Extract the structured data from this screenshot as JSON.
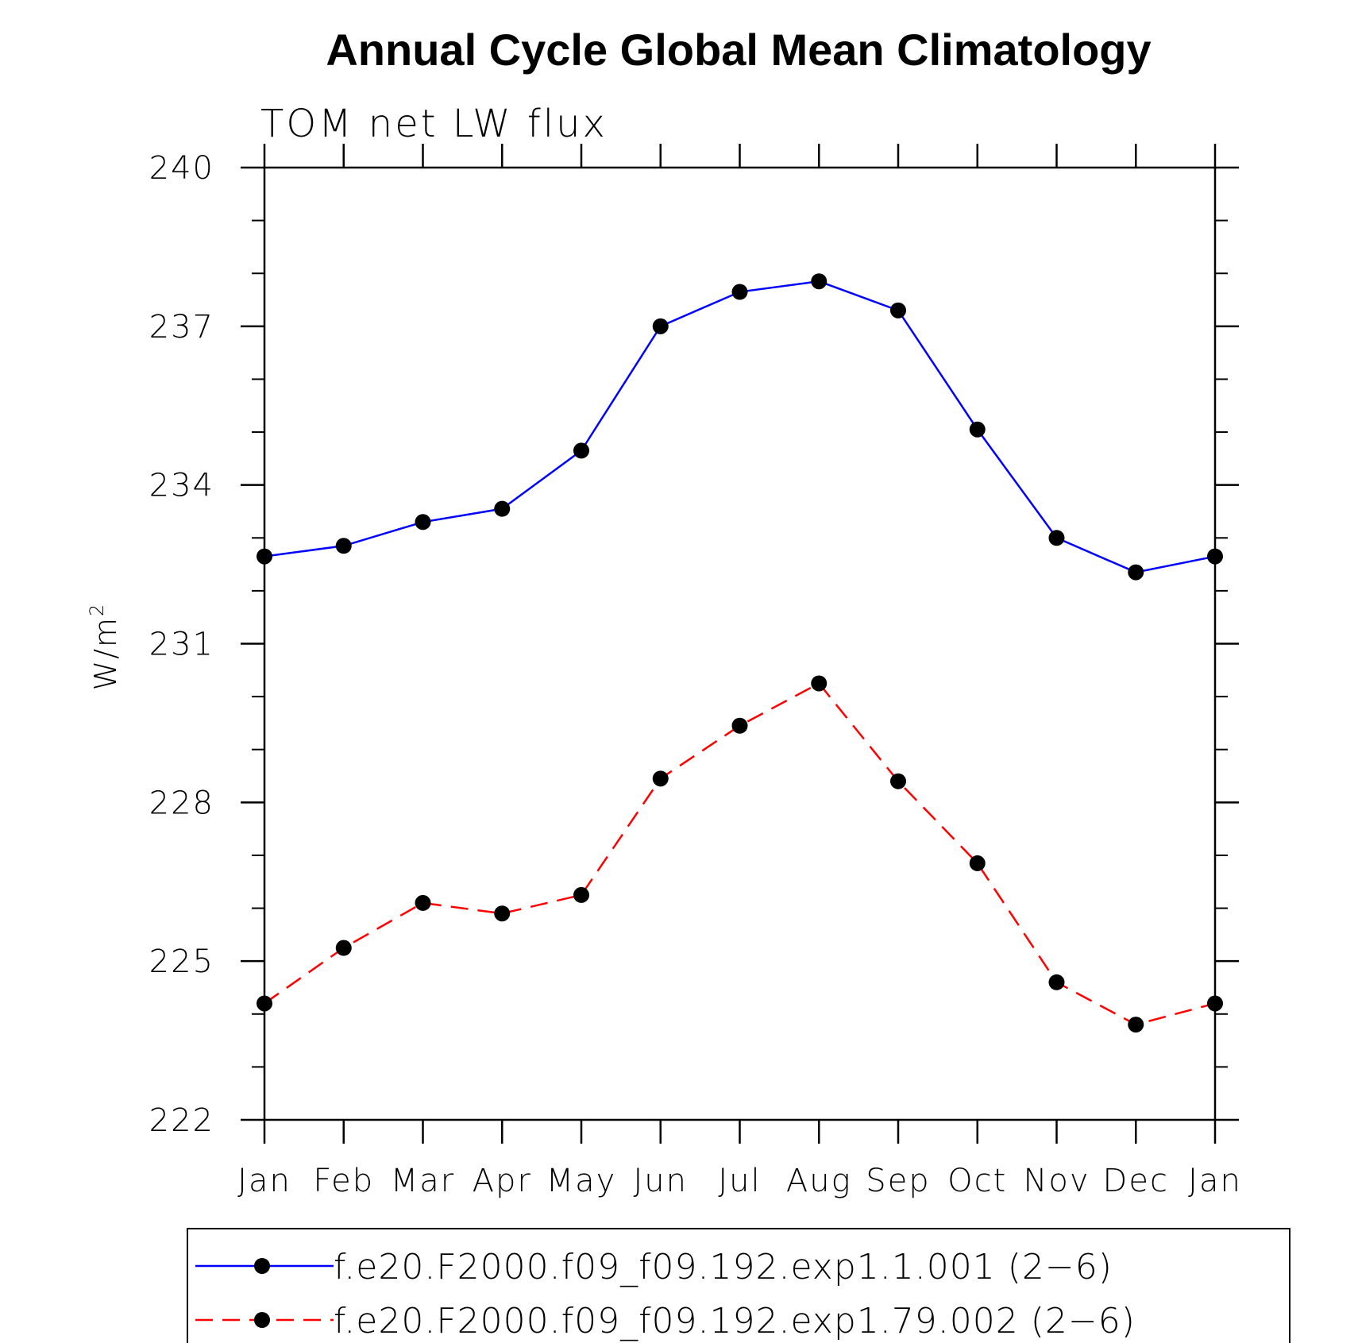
{
  "chart_data": {
    "type": "line",
    "title": "Annual Cycle Global Mean Climatology",
    "subtitle": "TOM net LW flux",
    "ylabel": "W/m",
    "ylabel_superscript": "2",
    "xlabel": "",
    "categories": [
      "Jan",
      "Feb",
      "Mar",
      "Apr",
      "May",
      "Jun",
      "Jul",
      "Aug",
      "Sep",
      "Oct",
      "Nov",
      "Dec",
      "Jan"
    ],
    "ylim": [
      222,
      240
    ],
    "yticks": [
      222,
      225,
      228,
      231,
      234,
      237,
      240
    ],
    "yticks_labels": [
      "222",
      "225",
      "228",
      "231",
      "234",
      "237",
      "240"
    ],
    "series": [
      {
        "name": "f.e20.F2000.f09_f09.192.exp1.1.001 (2−6)",
        "color": "#0000ff",
        "dash": "solid",
        "values": [
          232.65,
          232.85,
          233.3,
          233.55,
          234.65,
          237.0,
          237.65,
          237.85,
          237.3,
          235.05,
          233.0,
          232.35,
          232.65
        ]
      },
      {
        "name": "f.e20.F2000.f09_f09.192.exp1.79.002 (2−6)",
        "color": "#ff0000",
        "dash": "dashed",
        "values": [
          224.2,
          225.25,
          226.1,
          225.9,
          226.25,
          228.45,
          229.45,
          230.25,
          228.4,
          226.85,
          224.6,
          223.8,
          224.2
        ]
      }
    ],
    "legend_position": "bottom",
    "marker_color": "#000000"
  }
}
